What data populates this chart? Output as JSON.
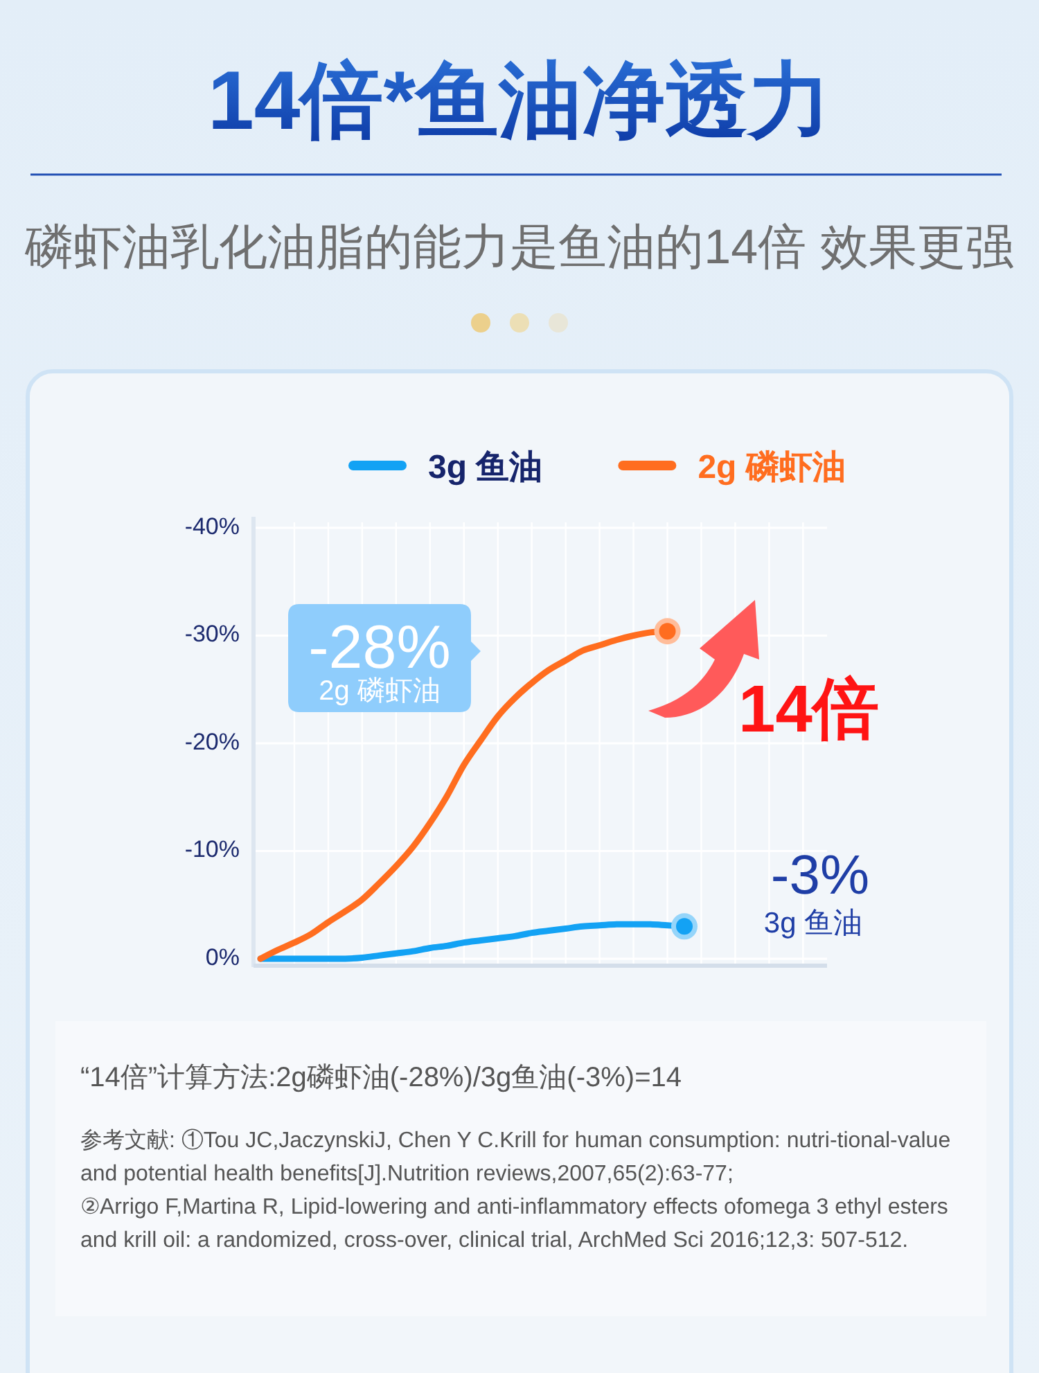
{
  "chart_data": {
    "type": "line",
    "title": "14倍*鱼油净透力",
    "subtitle": "磷虾油乳化油脂的能力是鱼油的14倍 效果更强",
    "categories": [
      null,
      null,
      null,
      null,
      null,
      null,
      null,
      null,
      null,
      null,
      null,
      null,
      null,
      null,
      null,
      null,
      null,
      null,
      null,
      null,
      null,
      null,
      null,
      null,
      null,
      null
    ],
    "series": [
      {
        "name": "3g 鱼油",
        "color": "#13a2f4",
        "values": [
          0,
          0,
          0,
          0,
          0,
          0,
          -0.1,
          -0.3,
          -0.5,
          -0.7,
          -1.0,
          -1.2,
          -1.5,
          -1.7,
          -1.9,
          -2.1,
          -2.4,
          -2.6,
          -2.8,
          -3.0,
          -3.1,
          -3.2,
          -3.2,
          -3.2,
          -3.1,
          -3.0
        ]
      },
      {
        "name": "2g 磷虾油",
        "color": "#ff6d1f",
        "values": [
          0,
          -0.8,
          -1.5,
          -2.3,
          -3.4,
          -4.4,
          -5.5,
          -7.0,
          -8.6,
          -10.4,
          -12.6,
          -15.1,
          -18.0,
          -20.3,
          -22.5,
          -24.2,
          -25.6,
          -26.8,
          -27.7,
          -28.6,
          -29.1,
          -29.6,
          -30.0,
          -30.3,
          -30.4,
          null
        ]
      }
    ],
    "ylim": [
      0,
      -40
    ],
    "yticks": [
      {
        "value": -40,
        "label": "-40%"
      },
      {
        "value": -30,
        "label": "-30%"
      },
      {
        "value": -20,
        "label": "-20%"
      },
      {
        "value": -10,
        "label": "-10%"
      },
      {
        "value": 0,
        "label": "0%"
      }
    ],
    "grid": true,
    "legend": "top",
    "line_style": "solid",
    "annotations": [
      "-28%",
      "2g 磷虾油",
      "14倍",
      "-3%",
      "3g 鱼油",
      "“14倍”计算方法:2g磷虾油(-28%)/3g鱼油(-3%)=14",
      "参考文献: ①Tou JC,JaczynskiJ, Chen Y C.Krill for human consumption: nutri-tional-value and potential health benefits[J].Nutrition reviews,2007,65(2):63-77;",
      "②Arrigo F,Martina R, Lipid-lowering and anti-inflammatory effects ofomega 3 ethyl esters and krill oil: a randomized, cross-over, clinical trial, ArchMed Sci 2016;12,3: 507-512."
    ]
  }
}
